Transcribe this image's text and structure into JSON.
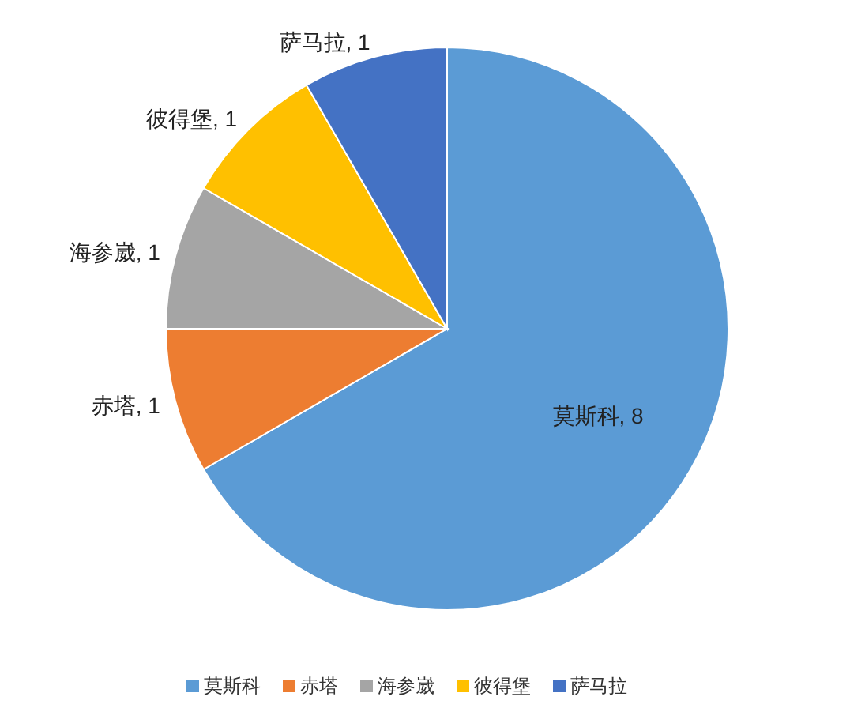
{
  "chart_data": {
    "type": "pie",
    "categories": [
      "莫斯科",
      "赤塔",
      "海参崴",
      "彼得堡",
      "萨马拉"
    ],
    "values": [
      8,
      1,
      1,
      1,
      1
    ],
    "colors": [
      "#5b9bd5",
      "#ed7d31",
      "#a5a5a5",
      "#ffc000",
      "#4472c4"
    ],
    "value_labels": [
      ", 8",
      ", 1",
      ", 1",
      ", 1",
      ", 1"
    ],
    "legend": "bottom"
  }
}
